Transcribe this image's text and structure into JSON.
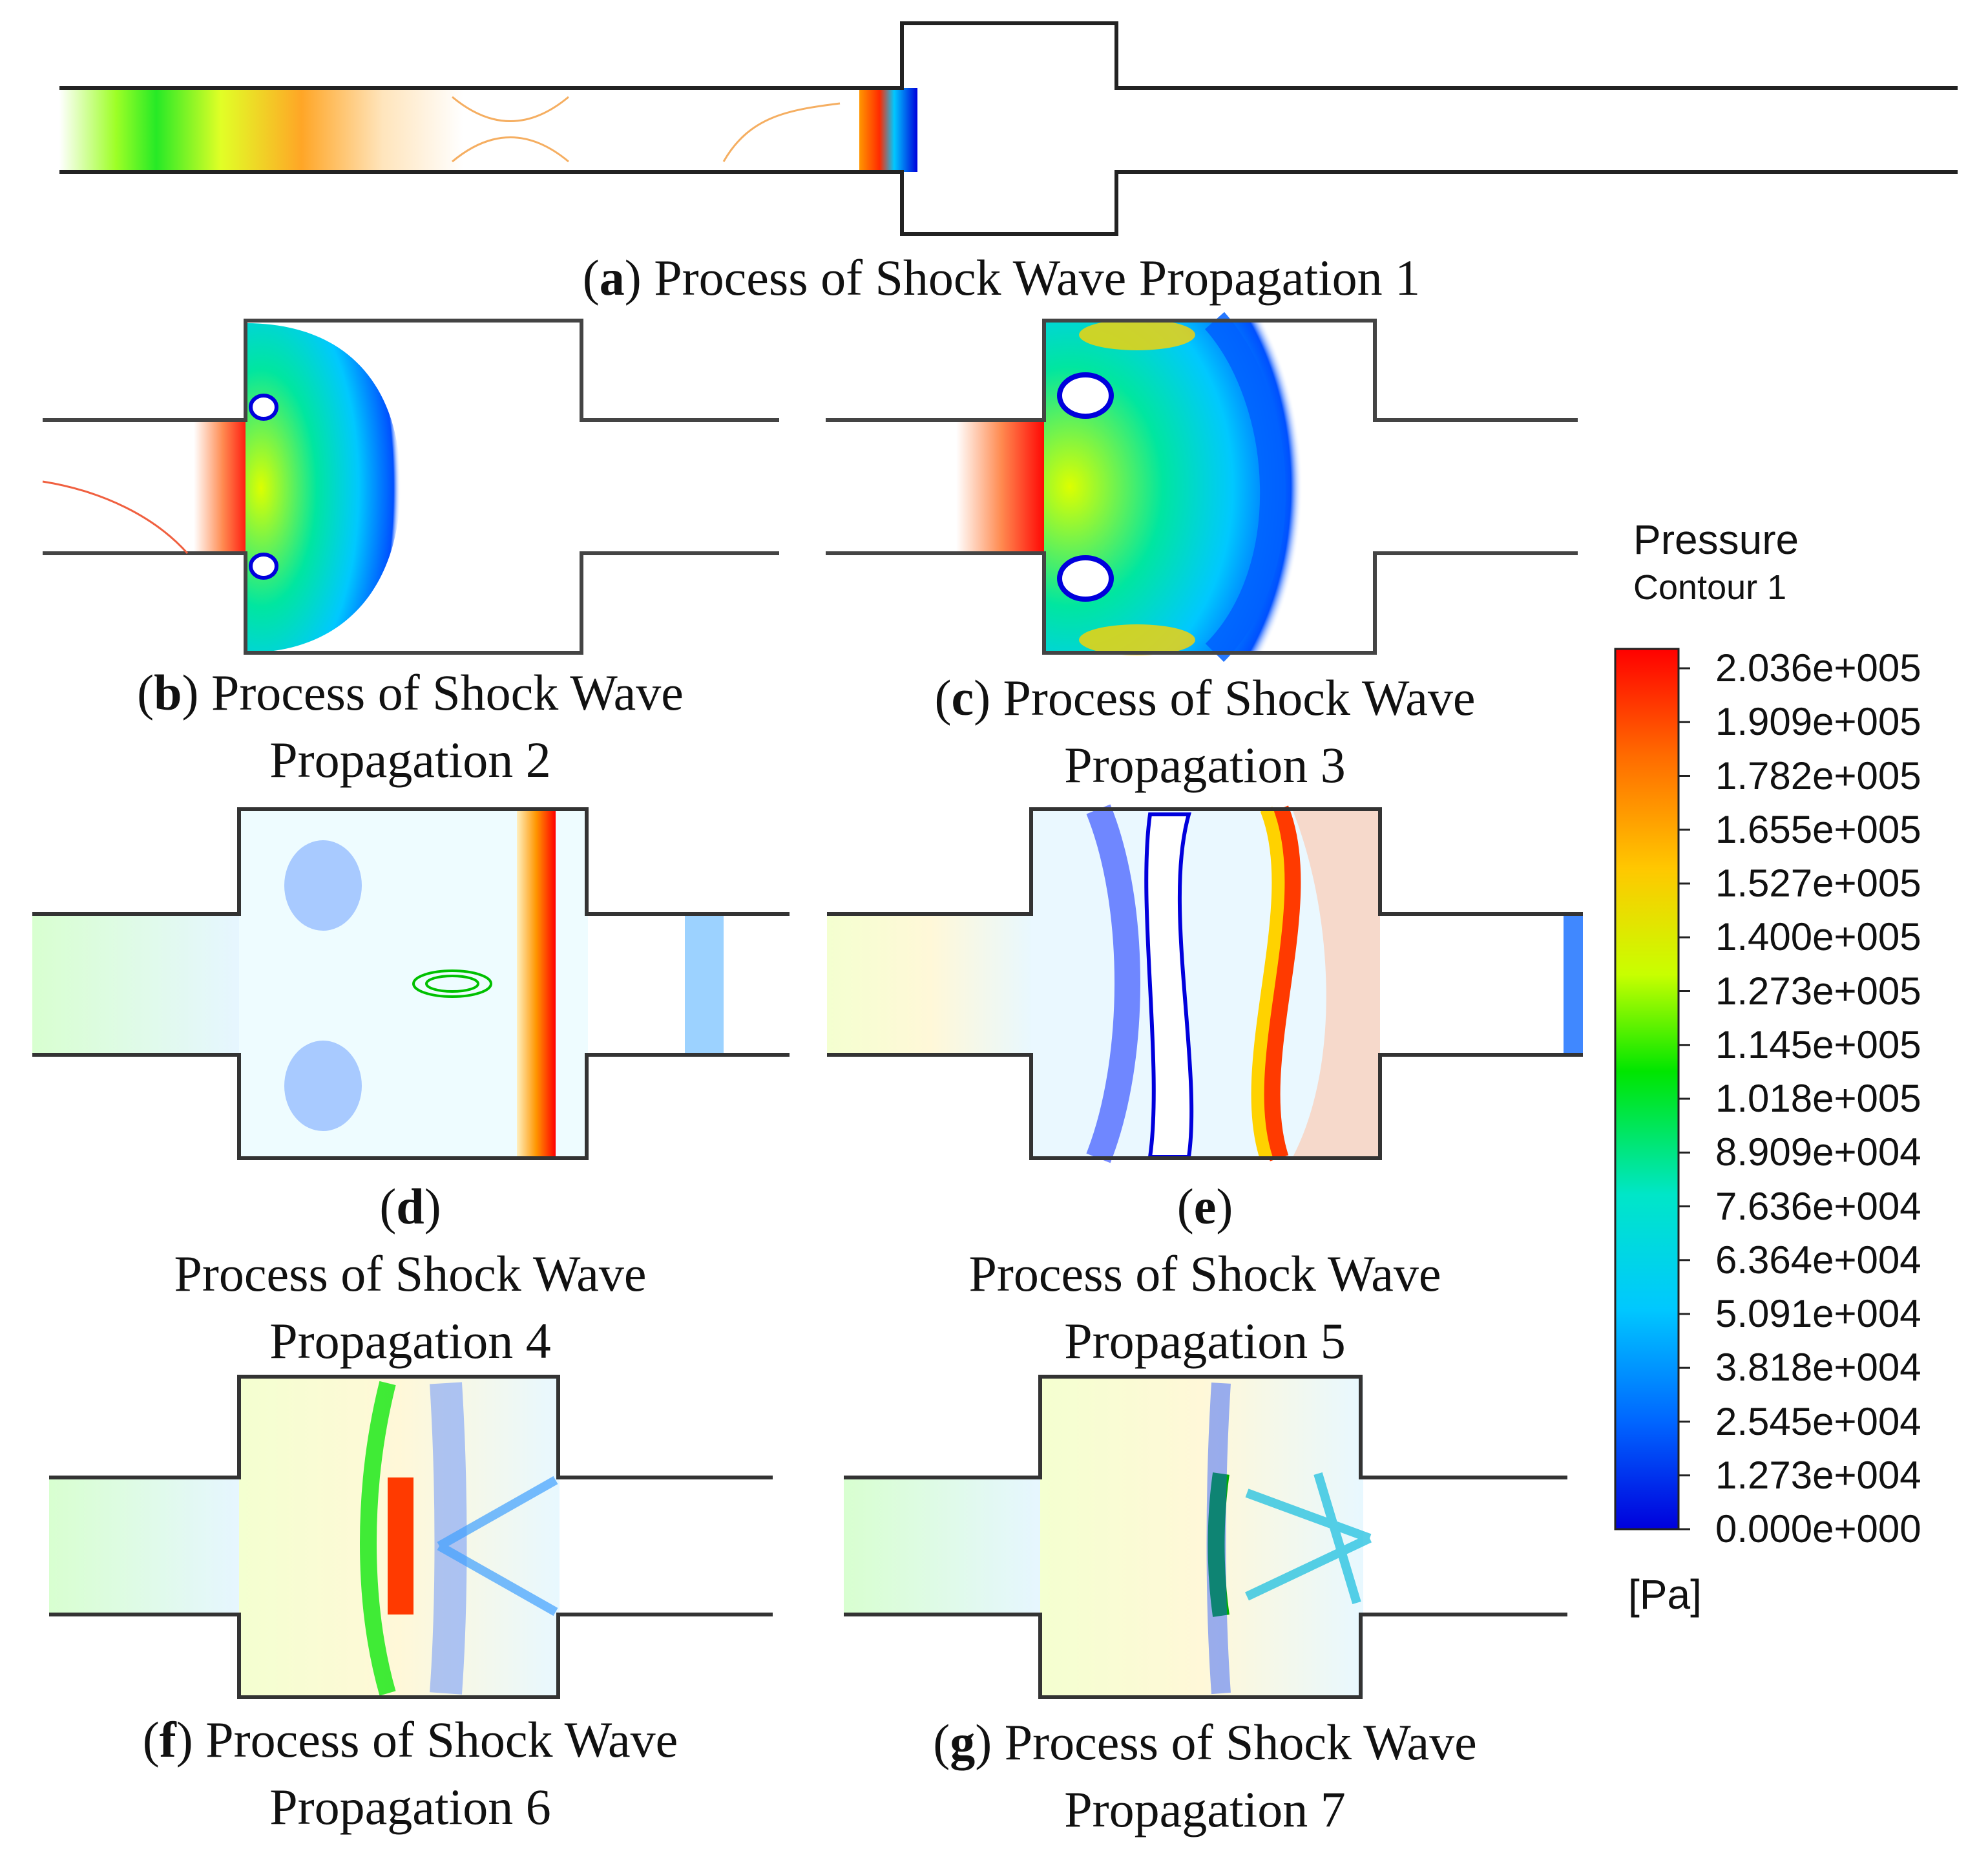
{
  "legend": {
    "title": "Pressure",
    "subtitle": "Contour 1",
    "unit": "[Pa]",
    "ticks": [
      "2.036e+005",
      "1.909e+005",
      "1.782e+005",
      "1.655e+005",
      "1.527e+005",
      "1.400e+005",
      "1.273e+005",
      "1.145e+005",
      "1.018e+005",
      "8.909e+004",
      "7.636e+004",
      "6.364e+004",
      "5.091e+004",
      "3.818e+004",
      "2.545e+004",
      "1.273e+004",
      "0.000e+000"
    ],
    "colors": [
      "#ff0000",
      "#ff5a00",
      "#ff9600",
      "#ffd200",
      "#dcff00",
      "#8cff00",
      "#00e600",
      "#00e6b4",
      "#00d2ff",
      "#0096ff",
      "#0032ff",
      "#0000dc"
    ]
  },
  "panels": {
    "a": {
      "letter": "a",
      "text": "Process of Shock Wave Propagation 1"
    },
    "b": {
      "letter": "b",
      "line1": "Process of Shock Wave",
      "line2": "Propagation 2"
    },
    "c": {
      "letter": "c",
      "line1": "Process of Shock Wave",
      "line2": "Propagation 3"
    },
    "d": {
      "letter": "d",
      "line1": "Process of Shock Wave",
      "line2": "Propagation 4"
    },
    "e": {
      "letter": "e",
      "line1": "Process of Shock Wave",
      "line2": "Propagation 5"
    },
    "f": {
      "letter": "f",
      "line1": "Process of Shock Wave",
      "line2": "Propagation 6"
    },
    "g": {
      "letter": "g",
      "line1": "Process of Shock Wave",
      "line2": "Propagation 7"
    }
  }
}
